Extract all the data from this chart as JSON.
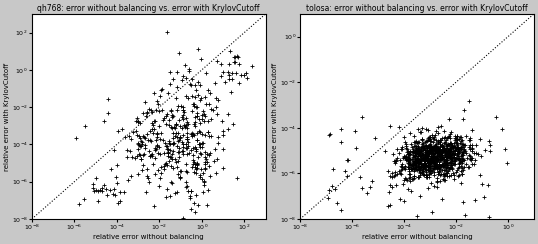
{
  "plot1_title": "qh768: error without balancing vs. error with KrylovCutoff",
  "plot2_title": "tolosa: error without balancing vs. error with KrylovCutoff",
  "xlabel": "relative error without balancing",
  "ylabel": "relative error with KrylovCutoff",
  "plot1_xlim": [
    1e-08,
    1000.0
  ],
  "plot1_ylim": [
    1e-08,
    1000.0
  ],
  "plot2_xlim": [
    1e-08,
    10.0
  ],
  "plot2_ylim": [
    1e-08,
    10.0
  ],
  "marker": "+",
  "markersize": 3,
  "background_color": "#c8c8c8",
  "plot_bg_color": "#ffffff",
  "title_fontsize": 5.5,
  "label_fontsize": 5.0,
  "tick_fontsize": 4.5
}
